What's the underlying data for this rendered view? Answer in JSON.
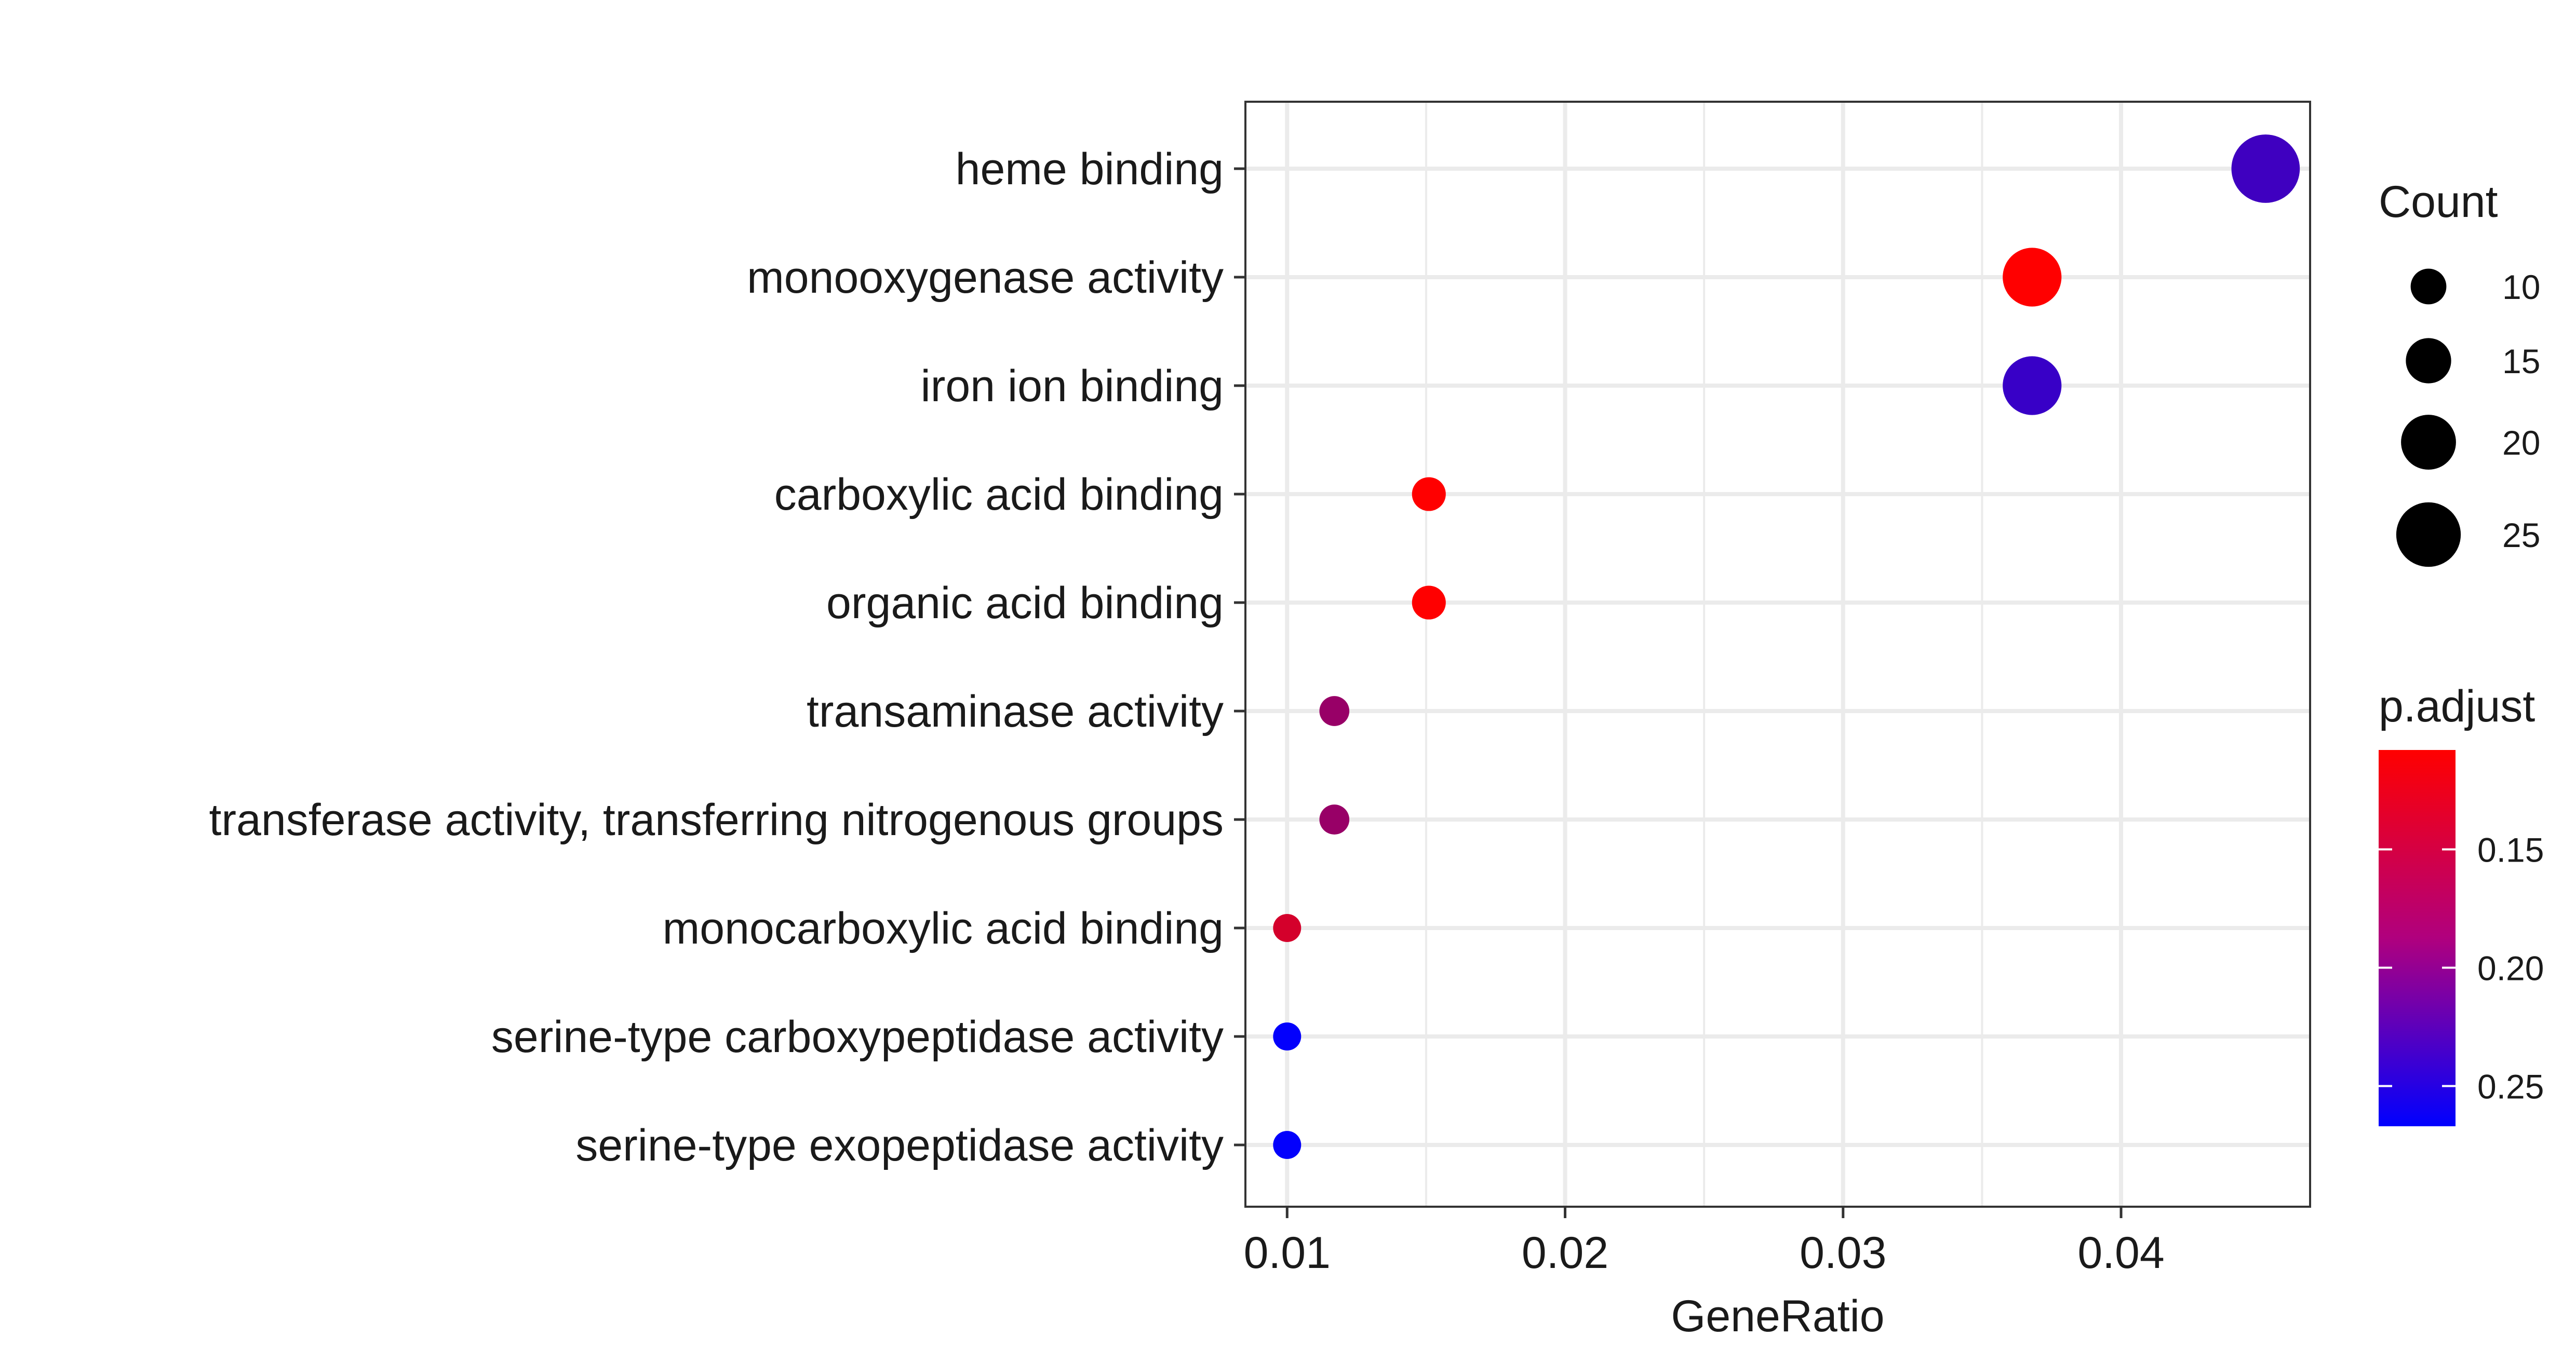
{
  "chart_data": {
    "type": "scatter",
    "xlabel": "GeneRatio",
    "ylabel": "",
    "xlim": [
      0.0085,
      0.0468
    ],
    "xticks": [
      0.01,
      0.02,
      0.03,
      0.04
    ],
    "xtick_labels": [
      "0.01",
      "0.02",
      "0.03",
      "0.04"
    ],
    "grid": true,
    "categories": [
      "heme binding",
      "monooxygenase activity",
      "iron ion binding",
      "carboxylic acid binding",
      "organic acid binding",
      "transaminase activity",
      "transferase activity, transferring nitrogenous groups",
      "monocarboxylic acid binding",
      "serine-type carboxypeptidase activity",
      "serine-type exopeptidase activity"
    ],
    "points": [
      {
        "category": "heme binding",
        "gene_ratio": 0.0452,
        "count": 27,
        "p_adjust": 0.228
      },
      {
        "category": "monooxygenase activity",
        "gene_ratio": 0.0368,
        "count": 22,
        "p_adjust": 0.108
      },
      {
        "category": "iron ion binding",
        "gene_ratio": 0.0368,
        "count": 22,
        "p_adjust": 0.232
      },
      {
        "category": "carboxylic acid binding",
        "gene_ratio": 0.0151,
        "count": 9,
        "p_adjust": 0.108
      },
      {
        "category": "organic acid binding",
        "gene_ratio": 0.0151,
        "count": 9,
        "p_adjust": 0.108
      },
      {
        "category": "transaminase activity",
        "gene_ratio": 0.0117,
        "count": 7,
        "p_adjust": 0.172
      },
      {
        "category": "transferase activity, transferring nitrogenous groups",
        "gene_ratio": 0.0117,
        "count": 7,
        "p_adjust": 0.172
      },
      {
        "category": "monocarboxylic acid binding",
        "gene_ratio": 0.01,
        "count": 6,
        "p_adjust": 0.135
      },
      {
        "category": "serine-type carboxypeptidase activity",
        "gene_ratio": 0.01,
        "count": 6,
        "p_adjust": 0.265
      },
      {
        "category": "serine-type exopeptidase activity",
        "gene_ratio": 0.01,
        "count": 6,
        "p_adjust": 0.265
      }
    ],
    "size_legend": {
      "title": "Count",
      "values": [
        10,
        15,
        20,
        25
      ],
      "labels": [
        "10",
        "15",
        "20",
        "25"
      ]
    },
    "color_legend": {
      "title": "p.adjust",
      "min": 0.108,
      "max": 0.267,
      "ticks": [
        0.15,
        0.2,
        0.25
      ],
      "tick_labels": [
        "0.15",
        "0.20",
        "0.25"
      ],
      "low_color": "#ff0000",
      "high_color": "#0000ff"
    }
  }
}
